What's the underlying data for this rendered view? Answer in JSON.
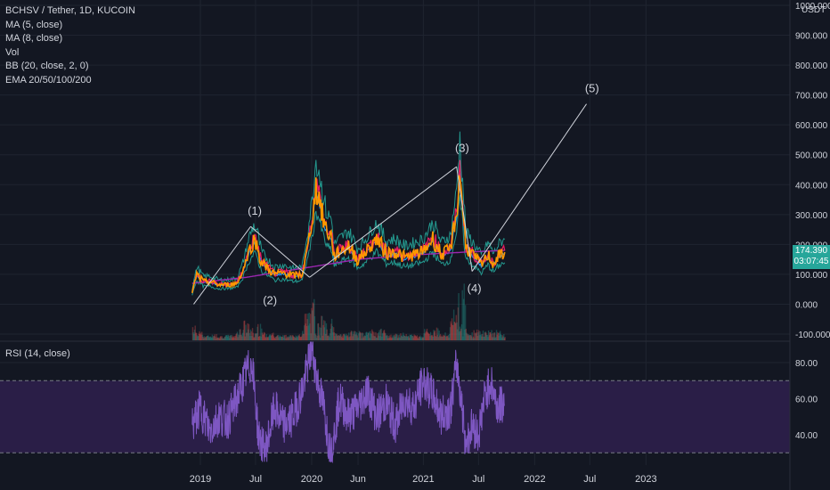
{
  "header": {
    "symbol": "BCHSV / Tether, 1D, KUCOIN",
    "indicators": [
      "MA (5, close)",
      "MA (8, close)",
      "Vol",
      "BB (20, close, 2, 0)",
      "EMA 20/50/100/200"
    ],
    "currency": "USDT"
  },
  "price_box": {
    "price": "174.390",
    "countdown": "03:07:45"
  },
  "rsi_panel": {
    "label": "RSI (14, close)"
  },
  "colors": {
    "background": "#131722",
    "grid": "#1f2430",
    "rsi_band": "#2a1e47",
    "rsi_line": "#7e57c2",
    "ma_orange": "#ff9800",
    "bb": "#26a69a",
    "price_tag": "#26a69a"
  },
  "chart_data": [
    {
      "type": "line",
      "title": "BCHSV / Tether, 1D, KUCOIN",
      "y_axis_ticks": [
        "1000.000",
        "900.000",
        "800.000",
        "700.000",
        "600.000",
        "500.000",
        "400.000",
        "300.000",
        "200.000",
        "100.000",
        "0.000",
        "-100.000"
      ],
      "ylim": [
        -100,
        1000
      ],
      "x_axis_ticks": [
        "2019",
        "Jul",
        "2020",
        "Jun",
        "2021",
        "Jul",
        "2022",
        "Jul",
        "2023"
      ],
      "series": [
        {
          "name": "MA (5, close)",
          "x": [
            "2018-12-05",
            "2018-12-20",
            "2019-01-10",
            "2019-02-01",
            "2019-03-01",
            "2019-04-01",
            "2019-05-01",
            "2019-05-20",
            "2019-06-10",
            "2019-06-25",
            "2019-07-05",
            "2019-07-20",
            "2019-08-10",
            "2019-09-01",
            "2019-10-01",
            "2019-11-01",
            "2019-12-01",
            "2019-12-20",
            "2020-01-05",
            "2020-01-15",
            "2020-01-25",
            "2020-02-05",
            "2020-02-20",
            "2020-03-05",
            "2020-03-15",
            "2020-04-01",
            "2020-05-01",
            "2020-06-01",
            "2020-07-01",
            "2020-08-01",
            "2020-09-01",
            "2020-10-01",
            "2020-11-01",
            "2020-12-01",
            "2021-01-01",
            "2021-02-01",
            "2021-03-01",
            "2021-04-01",
            "2021-04-10",
            "2021-04-20",
            "2021-05-01",
            "2021-05-10",
            "2021-05-20",
            "2021-06-01",
            "2021-06-20",
            "2021-07-10",
            "2021-08-01",
            "2021-08-20",
            "2021-09-01",
            "2021-09-15",
            "2021-09-25"
          ],
          "values": [
            40,
            100,
            75,
            75,
            65,
            65,
            70,
            110,
            180,
            210,
            200,
            140,
            120,
            100,
            105,
            95,
            100,
            200,
            300,
            390,
            360,
            300,
            240,
            230,
            160,
            175,
            195,
            150,
            180,
            220,
            170,
            175,
            155,
            165,
            175,
            220,
            165,
            185,
            250,
            300,
            440,
            330,
            190,
            180,
            155,
            130,
            165,
            135,
            155,
            170,
            174
          ]
        },
        {
          "name": "EMA 200",
          "x": [
            "2018-12-05",
            "2019-06-01",
            "2019-12-01",
            "2020-06-01",
            "2020-12-01",
            "2021-06-01",
            "2021-09-25"
          ],
          "values": [
            70,
            90,
            120,
            150,
            165,
            175,
            180
          ]
        }
      ],
      "annotations": [
        "(1)",
        "(2)",
        "(3)",
        "(4)",
        "(5)"
      ],
      "legend": "top-left"
    },
    {
      "type": "line",
      "title": "RSI (14, close)",
      "y_axis_ticks": [
        "80.00",
        "60.00",
        "40.00"
      ],
      "ylim": [
        24,
        93
      ],
      "bands": [
        30,
        70
      ],
      "series": [
        {
          "name": "RSI (14, close)",
          "x": [
            "2018-12-05",
            "2019-01-01",
            "2019-02-01",
            "2019-03-01",
            "2019-04-01",
            "2019-05-01",
            "2019-06-01",
            "2019-06-20",
            "2019-07-10",
            "2019-08-01",
            "2019-09-01",
            "2019-10-01",
            "2019-11-01",
            "2019-12-01",
            "2020-01-01",
            "2020-01-20",
            "2020-02-10",
            "2020-03-01",
            "2020-03-15",
            "2020-04-01",
            "2020-05-01",
            "2020-06-01",
            "2020-07-01",
            "2020-08-01",
            "2020-09-01",
            "2020-10-01",
            "2020-11-01",
            "2020-12-01",
            "2021-01-01",
            "2021-02-01",
            "2021-03-01",
            "2021-04-01",
            "2021-04-20",
            "2021-05-05",
            "2021-05-20",
            "2021-06-10",
            "2021-07-01",
            "2021-07-20",
            "2021-08-10",
            "2021-09-01",
            "2021-09-25"
          ],
          "values": [
            45,
            55,
            42,
            50,
            48,
            60,
            75,
            80,
            40,
            30,
            55,
            45,
            50,
            65,
            88,
            70,
            55,
            30,
            40,
            60,
            50,
            55,
            65,
            50,
            58,
            45,
            60,
            55,
            70,
            62,
            50,
            55,
            80,
            60,
            35,
            45,
            40,
            60,
            70,
            55,
            58
          ]
        }
      ]
    }
  ]
}
